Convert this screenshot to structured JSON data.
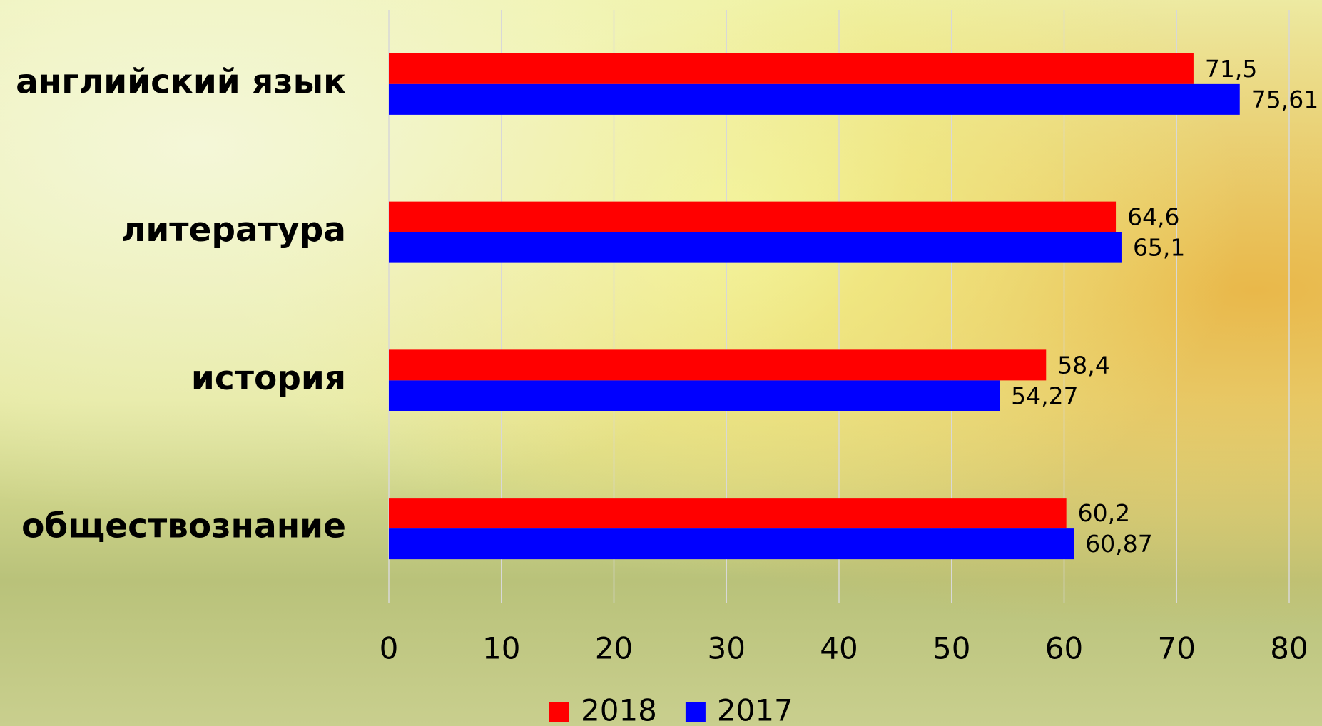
{
  "chart_data": {
    "type": "bar",
    "orientation": "horizontal",
    "categories": [
      "английский язык",
      "литература",
      "история",
      "обществознание"
    ],
    "series": [
      {
        "name": "2018",
        "color": "#ff0000",
        "values": [
          71.5,
          64.6,
          58.4,
          60.2
        ],
        "value_labels": [
          "71,5",
          "64,6",
          "58,4",
          "60,2"
        ]
      },
      {
        "name": "2017",
        "color": "#0000ff",
        "values": [
          75.61,
          65.1,
          54.27,
          60.87
        ],
        "value_labels": [
          "75,61",
          "65,1",
          "54,27",
          "60,87"
        ]
      }
    ],
    "xlim": [
      0,
      80
    ],
    "xticks": [
      0,
      10,
      20,
      30,
      40,
      50,
      60,
      70,
      80
    ],
    "grid": true,
    "legend": "bottom"
  }
}
